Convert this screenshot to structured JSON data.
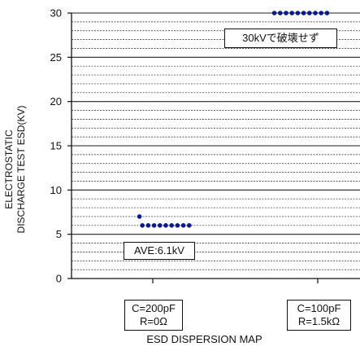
{
  "chart_data": {
    "type": "scatter",
    "title": "",
    "xlabel": "ESD DISPERSION MAP",
    "ylabel": [
      "ELECTROSTATIC",
      "DISCHARGE TEST ESD(KV)"
    ],
    "ylim": [
      0,
      30
    ],
    "yticks": [
      0,
      5,
      10,
      15,
      20,
      25,
      30
    ],
    "grid": true,
    "categories": [
      {
        "line1": "C=200pF",
        "line2": "R=0Ω"
      },
      {
        "line1": "C=100pF",
        "line2": "R=1.5kΩ"
      }
    ],
    "series": [
      {
        "category_index": 0,
        "values": [
          7,
          6,
          6,
          6,
          6,
          6,
          6,
          6,
          6,
          6
        ]
      },
      {
        "category_index": 1,
        "values": [
          30,
          30,
          30,
          30,
          30,
          30,
          30,
          30,
          30,
          30
        ]
      }
    ],
    "annotations": [
      {
        "text": "AVE:6.1kV",
        "category_index": 0
      },
      {
        "text": "30kVで破壊せず",
        "category_index": 1
      }
    ],
    "dot_color": "#0a1a8c"
  }
}
